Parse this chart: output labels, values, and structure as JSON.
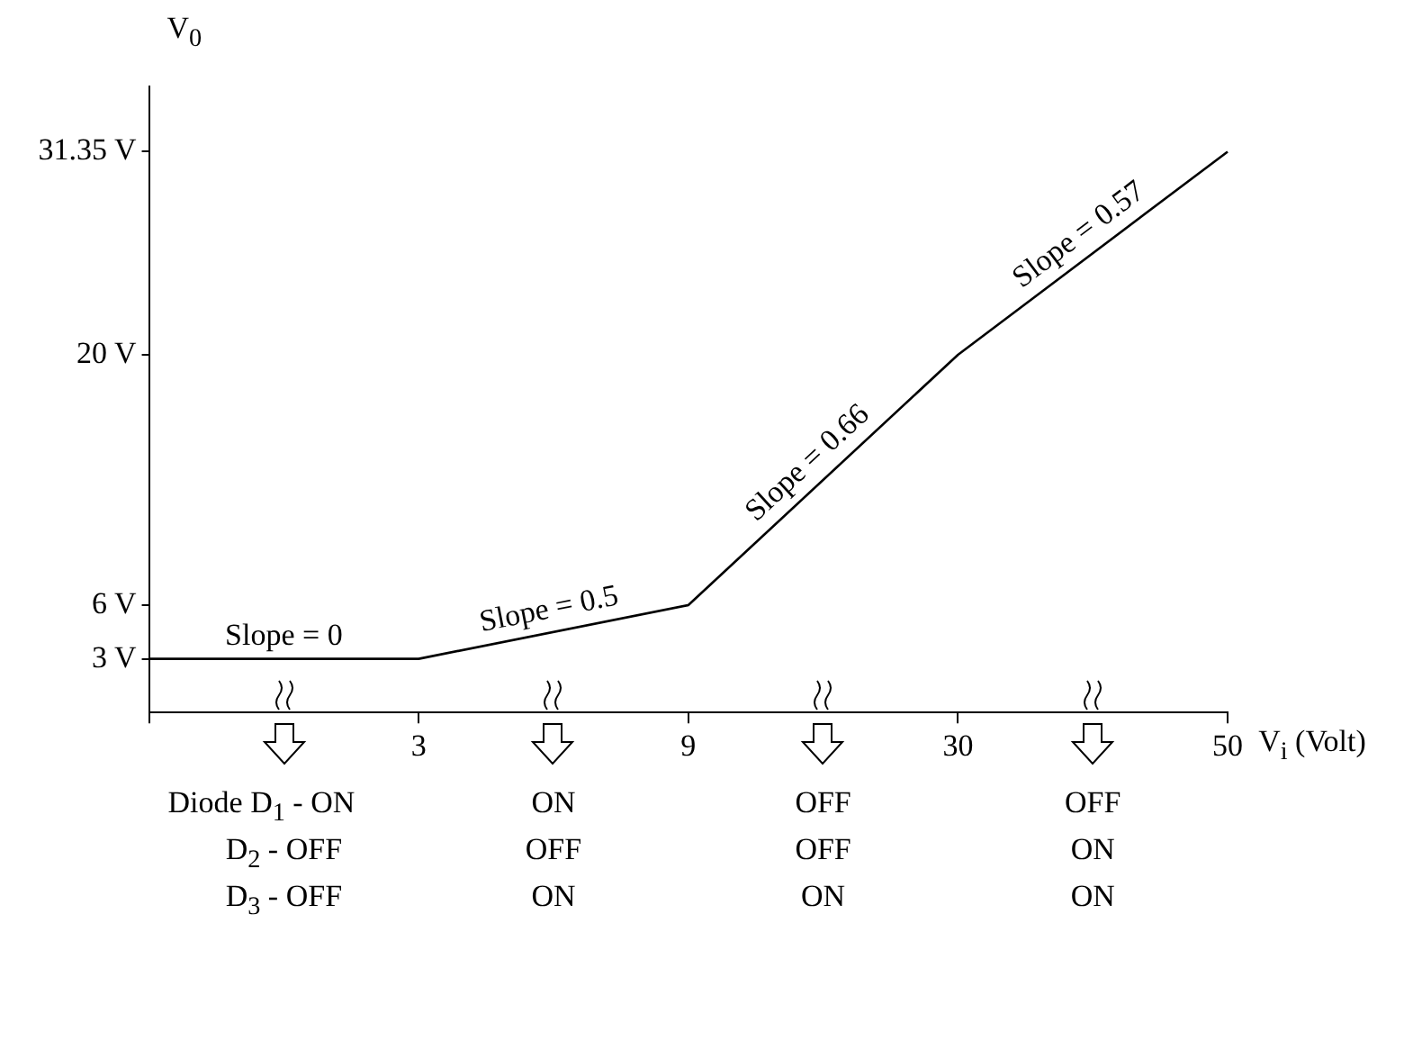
{
  "chart_data": {
    "type": "line",
    "xlabel": "V$_{i}$ (Volt)",
    "ylabel": "V$_{0}$",
    "categories": [
      null,
      "3",
      "9",
      "30",
      "50"
    ],
    "series": [
      {
        "color": "#000000",
        "values": [
          3,
          3,
          6,
          20,
          31.35
        ]
      }
    ],
    "ylim": [
      0,
      35
    ],
    "yticks": [
      {
        "value": 3,
        "label": "3 V"
      },
      {
        "value": 6,
        "label": "6 V"
      },
      {
        "value": 20,
        "label": "20 V"
      },
      {
        "value": 31.35,
        "label": "31.35 V"
      }
    ],
    "grid": false,
    "legend": false,
    "marker": "none",
    "line_style": "solid",
    "annotations": [
      "Slope = 0",
      "Slope = 0.5",
      "Slope = 0.66",
      "Slope = 0.57",
      "Diode D$_{1}$ - ON",
      "D$_{2}$ - OFF",
      "D$_{3}$ - OFF",
      "ON",
      "OFF",
      "ON",
      "OFF",
      "OFF",
      "ON",
      "OFF",
      "ON",
      "ON"
    ]
  }
}
